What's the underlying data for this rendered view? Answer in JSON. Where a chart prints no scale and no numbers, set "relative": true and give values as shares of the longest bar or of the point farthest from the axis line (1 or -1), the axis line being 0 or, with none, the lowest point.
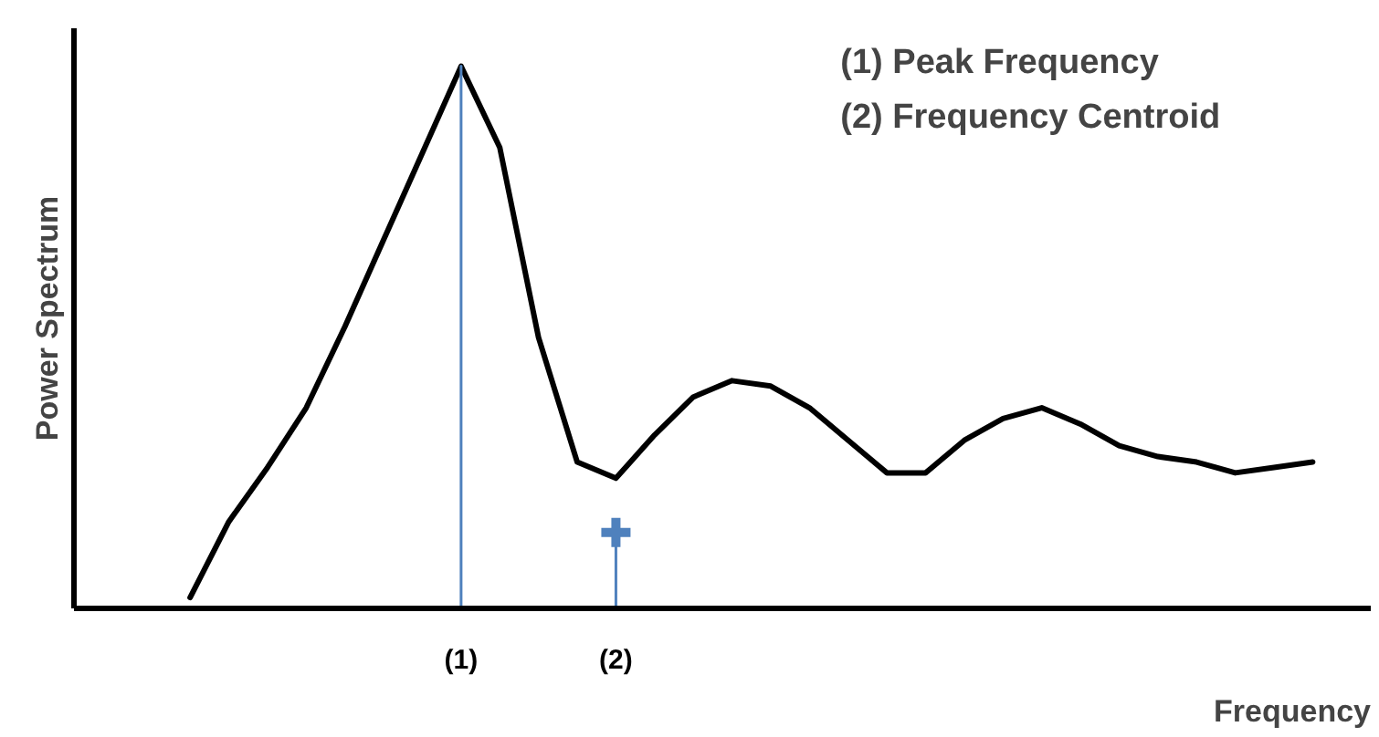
{
  "chart_data": {
    "type": "line",
    "relative": true,
    "xlabel": "Frequency",
    "ylabel": "Power Spectrum",
    "grid": false,
    "categories": [
      null,
      null,
      null,
      null,
      null,
      null,
      null,
      "(1)",
      null,
      null,
      null,
      "(2)",
      null,
      null,
      null,
      null,
      null,
      null,
      null,
      null,
      null,
      null,
      null,
      null,
      null,
      null,
      null,
      null,
      null,
      null
    ],
    "annotations": [
      "(1)  Peak Frequency",
      "(2)  Frequency Centroid"
    ],
    "series": [
      {
        "color": "#000000",
        "values": [
          0.02,
          0.16,
          0.26,
          0.37,
          0.52,
          0.68,
          0.84,
          1.0,
          0.85,
          0.5,
          0.27,
          0.24,
          0.32,
          0.39,
          0.42,
          0.41,
          0.37,
          0.31,
          0.25,
          0.25,
          0.31,
          0.35,
          0.37,
          0.34,
          0.3,
          0.28,
          0.27,
          0.25,
          0.26,
          0.27
        ]
      },
      {
        "type": "line",
        "color": "#4f81bd",
        "x": [
          "(1)",
          "(1)"
        ],
        "values": [
          0,
          1.0
        ]
      },
      {
        "type": "line",
        "color": "#4f81bd",
        "x": [
          "(2)",
          "(2)"
        ],
        "values": [
          0,
          0.14
        ]
      },
      {
        "type": "scatter",
        "color": "#4f81bd",
        "marker": "cross",
        "x": [
          "(2)"
        ],
        "values": [
          0.14
        ]
      }
    ]
  }
}
